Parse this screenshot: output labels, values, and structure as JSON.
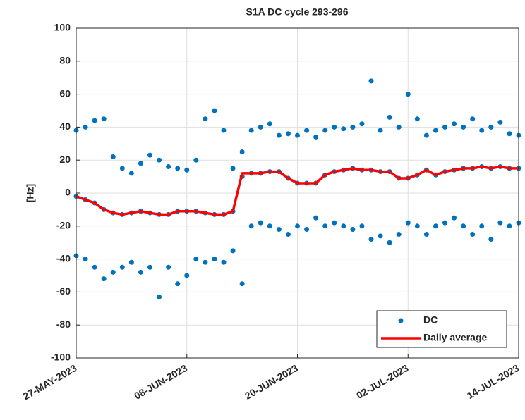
{
  "chart_data": {
    "type": "scatter",
    "title": "S1A DC cycle 293-296",
    "y_label": "[Hz]",
    "xlim": [
      "2023-05-27",
      "2023-07-14"
    ],
    "ylim": [
      -100,
      100
    ],
    "xticks": [
      {
        "value": "2023-05-27",
        "label": "27-MAY-2023"
      },
      {
        "value": "2023-06-08",
        "label": "08-JUN-2023"
      },
      {
        "value": "2023-06-20",
        "label": "20-JUN-2023"
      },
      {
        "value": "2023-07-02",
        "label": "02-JUL-2023"
      },
      {
        "value": "2023-07-14",
        "label": "14-JUL-2023"
      }
    ],
    "yticks": [
      -100,
      -80,
      -60,
      -40,
      -20,
      0,
      20,
      40,
      60,
      80,
      100
    ],
    "grid": true,
    "legend": "lower right",
    "series": [
      {
        "name": "DC",
        "type": "scatter",
        "color": "#0072bd",
        "x": [
          "2023-05-27",
          "2023-05-27",
          "2023-05-27",
          "2023-05-28",
          "2023-05-28",
          "2023-05-28",
          "2023-05-29",
          "2023-05-29",
          "2023-05-29",
          "2023-05-30",
          "2023-05-30",
          "2023-05-30",
          "2023-05-31",
          "2023-05-31",
          "2023-05-31",
          "2023-06-01",
          "2023-06-01",
          "2023-06-01",
          "2023-06-02",
          "2023-06-02",
          "2023-06-02",
          "2023-06-03",
          "2023-06-03",
          "2023-06-03",
          "2023-06-04",
          "2023-06-04",
          "2023-06-04",
          "2023-06-05",
          "2023-06-05",
          "2023-06-05",
          "2023-06-06",
          "2023-06-06",
          "2023-06-06",
          "2023-06-07",
          "2023-06-07",
          "2023-06-07",
          "2023-06-08",
          "2023-06-08",
          "2023-06-08",
          "2023-06-09",
          "2023-06-09",
          "2023-06-09",
          "2023-06-10",
          "2023-06-10",
          "2023-06-10",
          "2023-06-11",
          "2023-06-11",
          "2023-06-11",
          "2023-06-12",
          "2023-06-12",
          "2023-06-12",
          "2023-06-13",
          "2023-06-13",
          "2023-06-13",
          "2023-06-14",
          "2023-06-14",
          "2023-06-14",
          "2023-06-15",
          "2023-06-15",
          "2023-06-15",
          "2023-06-16",
          "2023-06-16",
          "2023-06-16",
          "2023-06-17",
          "2023-06-17",
          "2023-06-17",
          "2023-06-18",
          "2023-06-18",
          "2023-06-18",
          "2023-06-19",
          "2023-06-19",
          "2023-06-19",
          "2023-06-20",
          "2023-06-20",
          "2023-06-20",
          "2023-06-21",
          "2023-06-21",
          "2023-06-21",
          "2023-06-22",
          "2023-06-22",
          "2023-06-22",
          "2023-06-23",
          "2023-06-23",
          "2023-06-23",
          "2023-06-24",
          "2023-06-24",
          "2023-06-24",
          "2023-06-25",
          "2023-06-25",
          "2023-06-25",
          "2023-06-26",
          "2023-06-26",
          "2023-06-26",
          "2023-06-27",
          "2023-06-27",
          "2023-06-27",
          "2023-06-28",
          "2023-06-28",
          "2023-06-28",
          "2023-06-29",
          "2023-06-29",
          "2023-06-29",
          "2023-06-30",
          "2023-06-30",
          "2023-06-30",
          "2023-07-01",
          "2023-07-01",
          "2023-07-01",
          "2023-07-02",
          "2023-07-02",
          "2023-07-02",
          "2023-07-03",
          "2023-07-03",
          "2023-07-03",
          "2023-07-04",
          "2023-07-04",
          "2023-07-04",
          "2023-07-05",
          "2023-07-05",
          "2023-07-05",
          "2023-07-06",
          "2023-07-06",
          "2023-07-06",
          "2023-07-07",
          "2023-07-07",
          "2023-07-07",
          "2023-07-08",
          "2023-07-08",
          "2023-07-08",
          "2023-07-09",
          "2023-07-09",
          "2023-07-09",
          "2023-07-10",
          "2023-07-10",
          "2023-07-10",
          "2023-07-11",
          "2023-07-11",
          "2023-07-11",
          "2023-07-12",
          "2023-07-12",
          "2023-07-12",
          "2023-07-13",
          "2023-07-13",
          "2023-07-13",
          "2023-07-14",
          "2023-07-14",
          "2023-07-14"
        ],
        "values": [
          38,
          -2,
          -38,
          40,
          -4,
          -40,
          44,
          -6,
          -45,
          45,
          -10,
          -52,
          22,
          -12,
          -48,
          15,
          -13,
          -45,
          12,
          -12,
          -42,
          18,
          -11,
          -48,
          23,
          -12,
          -45,
          20,
          -13,
          -63,
          16,
          -13,
          -45,
          15,
          -11,
          -55,
          14,
          -11,
          -50,
          20,
          -11,
          -40,
          45,
          -12,
          -42,
          50,
          -13,
          -40,
          38,
          -13,
          -42,
          15,
          -11,
          -35,
          25,
          10,
          -55,
          38,
          12,
          -20,
          40,
          12,
          -18,
          42,
          13,
          -20,
          35,
          13,
          -22,
          36,
          9,
          -25,
          35,
          6,
          -20,
          38,
          6,
          -22,
          34,
          6,
          -15,
          38,
          11,
          -20,
          40,
          13,
          -18,
          39,
          14,
          -20,
          40,
          15,
          -22,
          42,
          14,
          -20,
          68,
          14,
          -28,
          38,
          13,
          -26,
          46,
          13,
          -30,
          40,
          9,
          -25,
          60,
          9,
          -18,
          45,
          11,
          -20,
          35,
          14,
          -25,
          38,
          11,
          -20,
          40,
          13,
          -18,
          42,
          14,
          -15,
          40,
          15,
          -20,
          45,
          15,
          -25,
          38,
          16,
          -20,
          40,
          15,
          -28,
          43,
          16,
          -18,
          36,
          15,
          -20,
          35,
          15,
          -18
        ]
      },
      {
        "name": "Daily average",
        "type": "line",
        "color": "#ff0000",
        "x": [
          "2023-05-27",
          "2023-05-28",
          "2023-05-29",
          "2023-05-30",
          "2023-05-31",
          "2023-06-01",
          "2023-06-02",
          "2023-06-03",
          "2023-06-04",
          "2023-06-05",
          "2023-06-06",
          "2023-06-07",
          "2023-06-08",
          "2023-06-09",
          "2023-06-10",
          "2023-06-11",
          "2023-06-12",
          "2023-06-13",
          "2023-06-14",
          "2023-06-15",
          "2023-06-16",
          "2023-06-17",
          "2023-06-18",
          "2023-06-19",
          "2023-06-20",
          "2023-06-21",
          "2023-06-22",
          "2023-06-23",
          "2023-06-24",
          "2023-06-25",
          "2023-06-26",
          "2023-06-27",
          "2023-06-28",
          "2023-06-29",
          "2023-06-30",
          "2023-07-01",
          "2023-07-02",
          "2023-07-03",
          "2023-07-04",
          "2023-07-05",
          "2023-07-06",
          "2023-07-07",
          "2023-07-08",
          "2023-07-09",
          "2023-07-10",
          "2023-07-11",
          "2023-07-12",
          "2023-07-13",
          "2023-07-14"
        ],
        "values": [
          -2,
          -4,
          -6,
          -10,
          -12,
          -13,
          -12,
          -11,
          -12,
          -13,
          -13,
          -11,
          -11,
          -11,
          -12,
          -13,
          -13,
          -11,
          12,
          12,
          12,
          13,
          13,
          9,
          6,
          6,
          6,
          11,
          13,
          14,
          15,
          14,
          14,
          13,
          13,
          9,
          9,
          11,
          14,
          11,
          13,
          14,
          15,
          15,
          16,
          15,
          16,
          15,
          15
        ]
      }
    ]
  }
}
